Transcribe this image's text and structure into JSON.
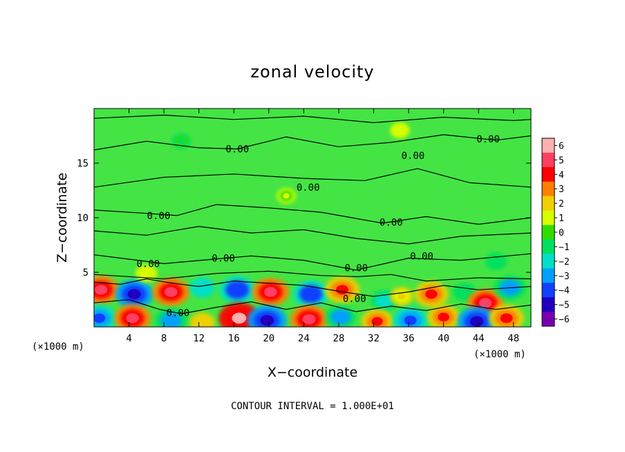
{
  "chart_data": {
    "type": "heatmap",
    "title": "zonal velocity",
    "xlabel": "X−coordinate",
    "ylabel": "Z−coordinate",
    "x_unit_label": "(×1000 m)",
    "y_unit_label": "(×1000 m)",
    "xlim": [
      0,
      50
    ],
    "ylim": [
      0,
      20
    ],
    "x_ticks": [
      4,
      8,
      12,
      16,
      20,
      24,
      28,
      32,
      36,
      40,
      44,
      48
    ],
    "y_ticks": [
      5,
      10,
      15
    ],
    "colorbar": {
      "levels": [
        6,
        5,
        4,
        3,
        2,
        1,
        0,
        -1,
        -2,
        -3,
        -4,
        -5,
        -6
      ],
      "labels": [
        "6",
        "5",
        "4",
        "3",
        "2",
        "1",
        "0",
        "−1",
        "−2",
        "−3",
        "−4",
        "−5",
        "−6"
      ],
      "colors": [
        "#ffb0b0",
        "#ff4060",
        "#ff0000",
        "#ff8000",
        "#f0d000",
        "#d8ff00",
        "#30dd00",
        "#00e060",
        "#00e0c8",
        "#00a0ff",
        "#1040ff",
        "#2000c0",
        "#7800b0"
      ]
    },
    "contour_label": "0.00",
    "contour_interval_note": "CONTOUR INTERVAL = 1.000E+01",
    "field_background_color": "#44e444",
    "cells": [
      {
        "x": 0.8,
        "z": 3.4,
        "u": 4.5
      },
      {
        "x": 4.6,
        "z": 3.0,
        "u": -4.8
      },
      {
        "x": 8.8,
        "z": 3.2,
        "u": 4.6
      },
      {
        "x": 12.4,
        "z": 3.6,
        "u": -2.0
      },
      {
        "x": 16.4,
        "z": 3.4,
        "u": -4.5
      },
      {
        "x": 20.2,
        "z": 3.2,
        "u": 4.6
      },
      {
        "x": 24.8,
        "z": 3.0,
        "u": -4.4
      },
      {
        "x": 28.4,
        "z": 3.4,
        "u": 4.2
      },
      {
        "x": 33.2,
        "z": 2.4,
        "u": -2.5
      },
      {
        "x": 35.2,
        "z": 2.8,
        "u": 1.6
      },
      {
        "x": 38.6,
        "z": 3.0,
        "u": 4.0
      },
      {
        "x": 42.4,
        "z": 3.2,
        "u": -1.5
      },
      {
        "x": 44.8,
        "z": 2.2,
        "u": 4.5
      },
      {
        "x": 47.6,
        "z": 3.6,
        "u": -3.5
      },
      {
        "x": 0.6,
        "z": 0.8,
        "u": -4.0
      },
      {
        "x": 4.4,
        "z": 0.8,
        "u": 4.5
      },
      {
        "x": 8.8,
        "z": 0.6,
        "u": -3.5
      },
      {
        "x": 12.4,
        "z": 0.4,
        "u": 2.0
      },
      {
        "x": 16.6,
        "z": 0.8,
        "u": 5.5
      },
      {
        "x": 19.8,
        "z": 0.6,
        "u": -5.2
      },
      {
        "x": 24.6,
        "z": 0.7,
        "u": 4.8
      },
      {
        "x": 28.2,
        "z": 0.9,
        "u": -3.2
      },
      {
        "x": 32.4,
        "z": 0.5,
        "u": 3.5
      },
      {
        "x": 36.2,
        "z": 0.6,
        "u": -4.2
      },
      {
        "x": 40.0,
        "z": 0.9,
        "u": 3.6
      },
      {
        "x": 43.8,
        "z": 0.5,
        "u": -5.0
      },
      {
        "x": 47.2,
        "z": 0.8,
        "u": 4.2
      },
      {
        "x": 6.0,
        "z": 4.9,
        "u": 1.2
      },
      {
        "x": 22.0,
        "z": 12.0,
        "u": 0.6
      },
      {
        "x": 46.0,
        "z": 6.0,
        "u": -1.2
      },
      {
        "x": 35.0,
        "z": 18.0,
        "u": 0.7
      },
      {
        "x": 10.0,
        "z": 17.0,
        "u": -0.6
      }
    ],
    "contours": [
      [
        [
          0,
          19.1
        ],
        [
          8,
          19.4
        ],
        [
          16,
          19.0
        ],
        [
          24,
          19.3
        ],
        [
          32,
          18.7
        ],
        [
          40,
          19.2
        ],
        [
          48,
          18.9
        ],
        [
          50,
          19.0
        ]
      ],
      [
        [
          0,
          16.2
        ],
        [
          6,
          17.0
        ],
        [
          12,
          16.4
        ],
        [
          16.4,
          16.3
        ],
        [
          22,
          17.4
        ],
        [
          28,
          16.5
        ],
        [
          34,
          16.9
        ],
        [
          40,
          17.6
        ],
        [
          46,
          17.1
        ],
        [
          50,
          17.5
        ]
      ],
      [
        [
          0,
          12.8
        ],
        [
          8,
          13.7
        ],
        [
          16,
          14.0
        ],
        [
          24,
          13.6
        ],
        [
          31,
          13.4
        ],
        [
          37,
          14.5
        ],
        [
          43,
          13.2
        ],
        [
          50,
          12.8
        ]
      ],
      [
        [
          0,
          10.7
        ],
        [
          6,
          10.4
        ],
        [
          9.5,
          10.2
        ],
        [
          14,
          11.2
        ],
        [
          20,
          10.9
        ],
        [
          26,
          10.5
        ],
        [
          33,
          9.5
        ],
        [
          38,
          10.1
        ],
        [
          44,
          9.4
        ],
        [
          50,
          10.0
        ]
      ],
      [
        [
          0,
          8.8
        ],
        [
          6,
          8.4
        ],
        [
          12,
          9.2
        ],
        [
          18,
          8.6
        ],
        [
          24,
          8.9
        ],
        [
          30,
          8.1
        ],
        [
          36,
          7.6
        ],
        [
          42,
          8.3
        ],
        [
          50,
          8.6
        ]
      ],
      [
        [
          0,
          6.6
        ],
        [
          4,
          6.2
        ],
        [
          8,
          5.8
        ],
        [
          13.7,
          6.2
        ],
        [
          18,
          6.5
        ],
        [
          24,
          6.1
        ],
        [
          30,
          5.2
        ],
        [
          36,
          6.3
        ],
        [
          42,
          6.1
        ],
        [
          50,
          6.7
        ]
      ],
      [
        [
          0,
          4.8
        ],
        [
          4,
          4.6
        ],
        [
          8,
          4.4
        ],
        [
          14,
          4.9
        ],
        [
          20,
          5.1
        ],
        [
          26,
          4.7
        ],
        [
          30.2,
          4.6
        ],
        [
          34,
          4.8
        ],
        [
          38,
          4.2
        ],
        [
          44,
          4.5
        ],
        [
          50,
          4.4
        ]
      ],
      [
        [
          0,
          4.1
        ],
        [
          3,
          3.9
        ],
        [
          6,
          4.4
        ],
        [
          9,
          4.0
        ],
        [
          12,
          3.7
        ],
        [
          16,
          4.2
        ],
        [
          20,
          4.0
        ],
        [
          24,
          3.8
        ],
        [
          28.5,
          3.2
        ],
        [
          32,
          2.8
        ],
        [
          36,
          3.2
        ],
        [
          40,
          3.8
        ],
        [
          44,
          3.4
        ],
        [
          50,
          3.7
        ]
      ],
      [
        [
          0,
          2.2
        ],
        [
          4,
          2.5
        ],
        [
          7.5,
          1.6
        ],
        [
          10,
          1.2
        ],
        [
          14,
          1.8
        ],
        [
          18,
          2.3
        ],
        [
          22,
          1.6
        ],
        [
          26,
          2.2
        ],
        [
          30,
          1.4
        ],
        [
          34,
          1.9
        ],
        [
          38,
          1.5
        ],
        [
          42,
          2.1
        ],
        [
          46,
          1.6
        ],
        [
          50,
          2.0
        ]
      ]
    ],
    "contour_labels": [
      {
        "x": 16.4,
        "z": 16.3
      },
      {
        "x": 36.5,
        "z": 15.7
      },
      {
        "x": 45.1,
        "z": 17.2
      },
      {
        "x": 24.5,
        "z": 12.8
      },
      {
        "x": 7.4,
        "z": 10.2
      },
      {
        "x": 34.0,
        "z": 9.6
      },
      {
        "x": 6.2,
        "z": 5.8
      },
      {
        "x": 14.8,
        "z": 6.3
      },
      {
        "x": 30.0,
        "z": 5.4
      },
      {
        "x": 37.5,
        "z": 6.5
      },
      {
        "x": 29.8,
        "z": 2.6
      },
      {
        "x": 9.6,
        "z": 1.3
      }
    ]
  }
}
